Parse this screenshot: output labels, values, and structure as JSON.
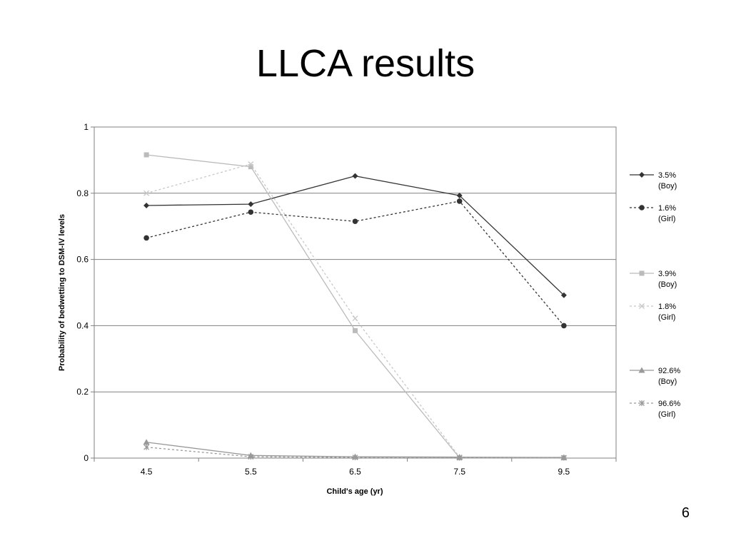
{
  "slide": {
    "title": "LLCA results",
    "page_number": "6"
  },
  "chart_data": {
    "type": "line",
    "title": "",
    "xlabel": "Child's age (yr)",
    "ylabel": "Probability of bedwetting to DSM-IV levels",
    "categories": [
      "4.5",
      "5.5",
      "6.5",
      "7.5",
      "9.5"
    ],
    "ylim": [
      0,
      1
    ],
    "yticks": [
      "0",
      "0.2",
      "0.4",
      "0.6",
      "0.8",
      "1"
    ],
    "grid": "horizontal",
    "legend_position": "right",
    "series": [
      {
        "name_line1": "3.5%",
        "name_line2": "(Boy)",
        "color": "#333333",
        "dash": "",
        "marker": "diamond",
        "values": [
          0.763,
          0.767,
          0.852,
          0.793,
          0.492
        ]
      },
      {
        "name_line1": "1.6%",
        "name_line2": "(Girl)",
        "color": "#333333",
        "dash": "3,3",
        "marker": "circle",
        "values": [
          0.665,
          0.743,
          0.715,
          0.776,
          0.4
        ]
      },
      {
        "name_line1": "3.9%",
        "name_line2": "(Boy)",
        "color": "#bbbbbb",
        "dash": "",
        "marker": "square",
        "values": [
          0.916,
          0.88,
          0.385,
          0.001,
          0.001
        ]
      },
      {
        "name_line1": "1.8%",
        "name_line2": "(Girl)",
        "color": "#c8c8c8",
        "dash": "3,3",
        "marker": "x",
        "values": [
          0.8,
          0.888,
          0.422,
          0.003,
          0.001
        ]
      },
      {
        "name_line1": "92.6%",
        "name_line2": "(Boy)",
        "color": "#999999",
        "dash": "",
        "marker": "triangle",
        "values": [
          0.048,
          0.008,
          0.004,
          0.003,
          0.002
        ]
      },
      {
        "name_line1": "96.6%",
        "name_line2": "(Girl)",
        "color": "#999999",
        "dash": "3,3",
        "marker": "star",
        "values": [
          0.033,
          0.004,
          0.002,
          0.001,
          0.001
        ]
      }
    ]
  }
}
